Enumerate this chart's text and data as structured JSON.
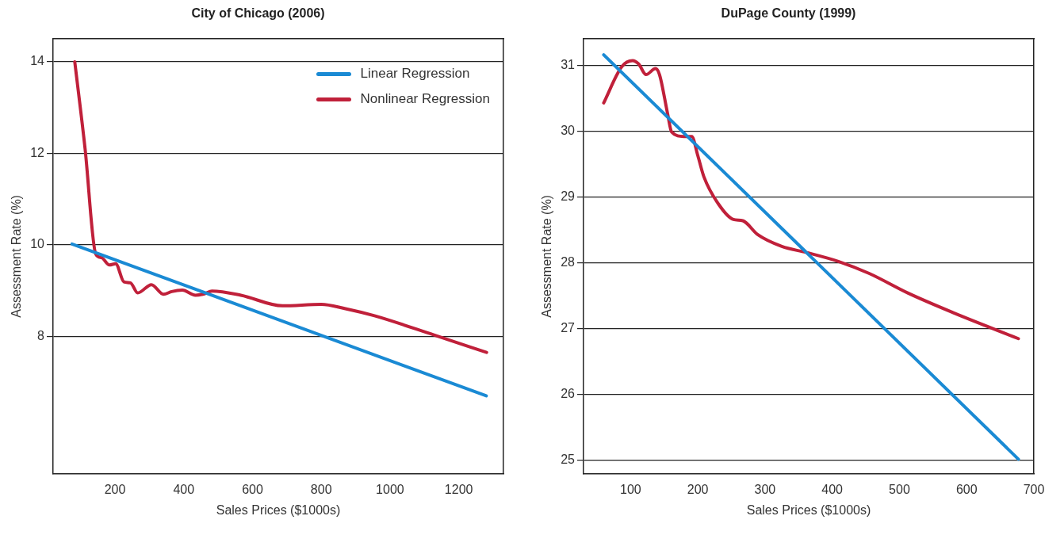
{
  "chart_data": [
    {
      "type": "line",
      "title": "City of Chicago (2006)",
      "xlabel": "Sales Prices ($1000s)",
      "ylabel": "Assessment Rate (%)",
      "xlim": [
        20,
        1330
      ],
      "xticks": [
        200,
        400,
        600,
        800,
        1000,
        1200
      ],
      "ylim": [
        5,
        14.5
      ],
      "yticks": [
        8,
        10,
        12,
        14
      ],
      "grid": "y",
      "legend": "top right",
      "series": [
        {
          "name": "Linear Regression",
          "color": "#1a8ad4",
          "x": [
            75,
            1280
          ],
          "values": [
            10.02,
            6.7
          ]
        },
        {
          "name": "Nonlinear Regression",
          "color": "#c0203a",
          "x": [
            83,
            113,
            144,
            161,
            184,
            202,
            226,
            245,
            266,
            306,
            341,
            365,
            396,
            434,
            460,
            482,
            566,
            687,
            800,
            868,
            955,
            1128,
            1281
          ],
          "values": [
            14,
            12.1,
            9.8,
            9.72,
            9.56,
            9.59,
            9.19,
            9.17,
            8.95,
            9.13,
            8.92,
            8.98,
            9.01,
            8.9,
            8.93,
            8.99,
            8.9,
            8.67,
            8.7,
            8.61,
            8.45,
            8.03,
            7.65
          ]
        }
      ]
    },
    {
      "type": "line",
      "title": "DuPage County (1999)",
      "xlabel": "Sales Prices ($1000s)",
      "ylabel": "Assessment Rate (%)",
      "xlim": [
        30,
        700
      ],
      "xticks": [
        100,
        200,
        300,
        400,
        500,
        600,
        700
      ],
      "ylim": [
        24.8,
        31.4
      ],
      "yticks": [
        25,
        26,
        27,
        28,
        29,
        30,
        31
      ],
      "grid": "y",
      "series": [
        {
          "color": "#1a8ad4",
          "x": [
            60,
            677
          ],
          "values": [
            31.16,
            25.02
          ]
        },
        {
          "color": "#c0203a",
          "x": [
            60,
            87,
            103,
            112,
            123,
            137,
            143,
            155,
            161,
            179,
            191,
            200,
            209,
            231,
            253,
            267,
            289,
            325,
            361,
            410,
            455,
            513,
            581,
            677
          ],
          "values": [
            30.43,
            30.98,
            31.07,
            31.02,
            30.86,
            30.95,
            30.86,
            30.27,
            29.99,
            29.92,
            29.92,
            29.63,
            29.31,
            28.89,
            28.66,
            28.64,
            28.43,
            28.25,
            28.16,
            28.02,
            27.84,
            27.54,
            27.24,
            26.85
          ]
        }
      ]
    }
  ]
}
